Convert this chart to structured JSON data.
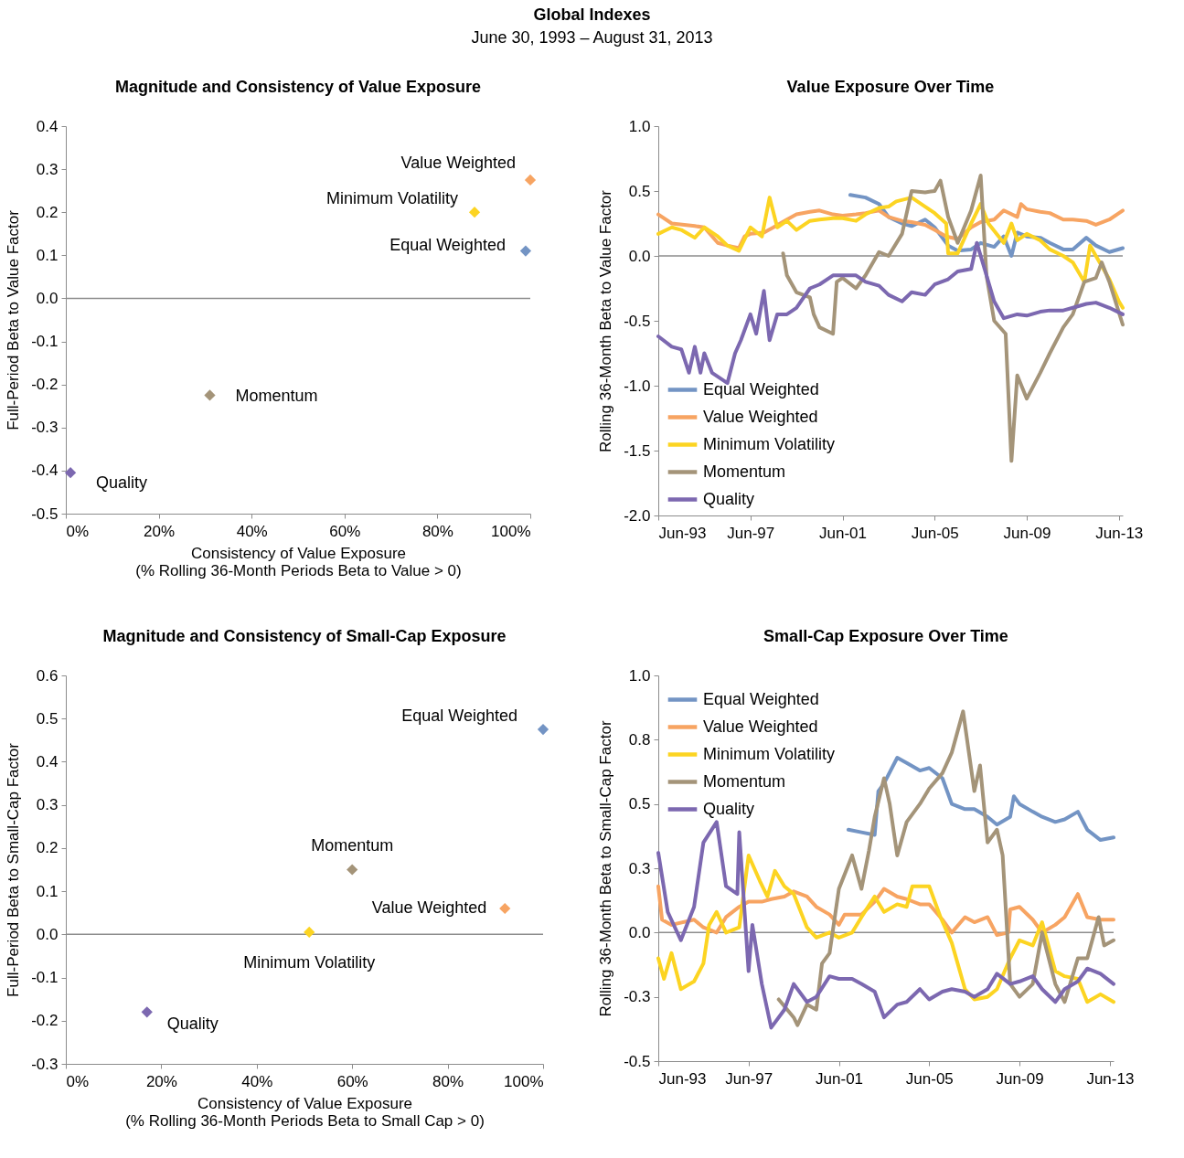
{
  "chart_data": [
    {
      "type": "other",
      "title": "Global Indexes",
      "subtitle": "June 30, 1993 – August 31, 2013"
    },
    {
      "type": "scatter",
      "title": "Magnitude and Consistency of Value Exposure",
      "xlabel": "Consistency of Value Exposure\n(% Rolling 36-Month Periods Beta to Value > 0)",
      "ylabel": "Full-Period Beta to Value Factor",
      "xlim": [
        0,
        100
      ],
      "xticks": [
        {
          "value": 0,
          "label": "0%"
        },
        {
          "value": 20,
          "label": "20%"
        },
        {
          "value": 40,
          "label": "40%"
        },
        {
          "value": 60,
          "label": "60%"
        },
        {
          "value": 80,
          "label": "80%"
        },
        {
          "value": 100,
          "label": "100%"
        }
      ],
      "ylim": [
        -0.5,
        0.4
      ],
      "yticks": [
        0.4,
        0.3,
        0.2,
        0.1,
        {
          "value": 0,
          "label": "0.0"
        },
        -0.1,
        -0.2,
        -0.3,
        -0.4,
        -0.5
      ],
      "marker": "diamond",
      "legend": false,
      "grid": false,
      "ref_lines": [
        {
          "axis": "y",
          "value": 0,
          "color": "#8c8c8c"
        }
      ],
      "series": [
        {
          "name": "Equal Weighted",
          "color": "#7394c4",
          "x": [
            99
          ],
          "values": [
            0.11
          ]
        },
        {
          "name": "Value Weighted",
          "color": "#f7a462",
          "x": [
            100
          ],
          "values": [
            0.275
          ]
        },
        {
          "name": "Minimum Volatility",
          "color": "#fcd422",
          "x": [
            88
          ],
          "values": [
            0.2
          ]
        },
        {
          "name": "Momentum",
          "color": "#a49479",
          "x": [
            31
          ],
          "values": [
            -0.225
          ]
        },
        {
          "name": "Quality",
          "color": "#7c68b0",
          "x": [
            1
          ],
          "values": [
            -0.405
          ]
        }
      ]
    },
    {
      "type": "line",
      "title": "Value Exposure Over Time",
      "ylabel": "Rolling 36-Month Beta to Value Factor",
      "xlim": [
        "1993-06",
        "2013-08"
      ],
      "xticks": [
        {
          "value": "1993-06",
          "label": "Jun-93"
        },
        {
          "value": "1997-06",
          "label": "Jun-97"
        },
        {
          "value": "2001-06",
          "label": "Jun-01"
        },
        {
          "value": "2005-06",
          "label": "Jun-05"
        },
        {
          "value": "2009-06",
          "label": "Jun-09"
        },
        {
          "value": "2013-06",
          "label": "Jun-13"
        }
      ],
      "ylim": [
        -2,
        1
      ],
      "yticks": [
        {
          "value": 1,
          "label": "1.0"
        },
        0.5,
        {
          "value": 0,
          "label": "0.0"
        },
        -0.5,
        {
          "value": -1,
          "label": "-1.0"
        },
        -1.5,
        {
          "value": -2,
          "label": "-2.0"
        }
      ],
      "legend": "bottom left",
      "grid": false,
      "marker": "none",
      "line_style": "solid",
      "ref_lines": [
        {
          "axis": "y",
          "value": 0,
          "color": "#8c8c8c"
        }
      ],
      "series": [
        {
          "name": "Equal Weighted",
          "color": "#7394c4",
          "x": [
            "2001-10",
            "2002-06",
            "2003-01",
            "2003-06",
            "2004-01",
            "2004-06",
            "2005-01",
            "2005-06",
            "2006-01",
            "2006-06",
            "2007-01",
            "2007-06",
            "2008-01",
            "2008-06",
            "2008-10",
            "2009-01",
            "2009-06",
            "2010-01",
            "2010-06",
            "2011-01",
            "2011-06",
            "2012-01",
            "2012-06",
            "2013-01",
            "2013-08"
          ],
          "values": [
            0.47,
            0.45,
            0.4,
            0.3,
            0.25,
            0.23,
            0.28,
            0.22,
            0.08,
            0.04,
            0.05,
            0.1,
            0.07,
            0.15,
            0,
            0.18,
            0.15,
            0.14,
            0.1,
            0.05,
            0.05,
            0.14,
            0.08,
            0.03,
            0.06
          ]
        },
        {
          "name": "Value Weighted",
          "color": "#f7a462",
          "x": [
            "1993-06",
            "1994-01",
            "1995-01",
            "1995-06",
            "1996-01",
            "1996-06",
            "1996-12",
            "1997-03",
            "1997-06",
            "1998-01",
            "1998-06",
            "1999-01",
            "1999-06",
            "2000-01",
            "2000-06",
            "2001-01",
            "2001-06",
            "2002-01",
            "2002-06",
            "2003-01",
            "2003-06",
            "2004-01",
            "2004-06",
            "2005-01",
            "2005-06",
            "2005-12",
            "2006-06",
            "2007-01",
            "2007-06",
            "2008-01",
            "2008-06",
            "2009-01",
            "2009-03",
            "2009-06",
            "2010-01",
            "2010-06",
            "2011-01",
            "2011-06",
            "2012-01",
            "2012-06",
            "2013-01",
            "2013-08"
          ],
          "values": [
            0.32,
            0.25,
            0.23,
            0.22,
            0.1,
            0.08,
            0.06,
            0.15,
            0.17,
            0.18,
            0.22,
            0.28,
            0.32,
            0.34,
            0.35,
            0.32,
            0.31,
            0.32,
            0.33,
            0.35,
            0.3,
            0.27,
            0.26,
            0.24,
            0.2,
            0.15,
            0.13,
            0.22,
            0.26,
            0.28,
            0.35,
            0.3,
            0.4,
            0.36,
            0.34,
            0.33,
            0.28,
            0.28,
            0.27,
            0.24,
            0.28,
            0.35
          ]
        },
        {
          "name": "Minimum Volatility",
          "color": "#fcd422",
          "x": [
            "1993-06",
            "1994-01",
            "1994-06",
            "1995-01",
            "1995-06",
            "1996-01",
            "1996-06",
            "1996-12",
            "1997-06",
            "1997-12",
            "1998-04",
            "1998-08",
            "1999-01",
            "1999-06",
            "2000-01",
            "2000-06",
            "2001-01",
            "2001-06",
            "2002-01",
            "2002-06",
            "2003-01",
            "2003-06",
            "2003-10",
            "2004-06",
            "2005-01",
            "2005-06",
            "2005-12",
            "2006-01",
            "2006-06",
            "2007-01",
            "2007-06",
            "2007-10",
            "2008-06",
            "2008-10",
            "2009-01",
            "2009-06",
            "2010-01",
            "2010-06",
            "2011-01",
            "2011-06",
            "2011-12",
            "2012-03",
            "2012-06",
            "2013-01",
            "2013-06",
            "2013-08"
          ],
          "values": [
            0.17,
            0.22,
            0.2,
            0.14,
            0.22,
            0.15,
            0.08,
            0.04,
            0.22,
            0.15,
            0.45,
            0.22,
            0.27,
            0.2,
            0.27,
            0.28,
            0.29,
            0.29,
            0.27,
            0.32,
            0.37,
            0.38,
            0.42,
            0.45,
            0.38,
            0.33,
            0.25,
            0.02,
            0.02,
            0.25,
            0.4,
            0.25,
            0.1,
            0.25,
            0.12,
            0.17,
            0.12,
            0.05,
            0,
            -0.05,
            -0.2,
            0.08,
            0,
            -0.18,
            -0.35,
            -0.4
          ]
        },
        {
          "name": "Momentum",
          "color": "#a49479",
          "x": [
            "1998-11",
            "1999-01",
            "1999-06",
            "2000-01",
            "2000-03",
            "2000-06",
            "2001-01",
            "2001-03",
            "2001-06",
            "2002-01",
            "2002-06",
            "2003-01",
            "2003-06",
            "2004-01",
            "2004-06",
            "2005-01",
            "2005-06",
            "2005-09",
            "2006-01",
            "2006-06",
            "2007-01",
            "2007-06",
            "2007-09",
            "2008-01",
            "2008-07",
            "2008-10",
            "2009-01",
            "2009-06",
            "2010-01",
            "2010-06",
            "2011-01",
            "2011-06",
            "2011-12",
            "2012-06",
            "2012-09",
            "2013-01",
            "2013-08"
          ],
          "values": [
            0.02,
            -0.15,
            -0.28,
            -0.32,
            -0.45,
            -0.55,
            -0.6,
            -0.2,
            -0.17,
            -0.25,
            -0.15,
            0.03,
            0,
            0.17,
            0.5,
            0.49,
            0.5,
            0.58,
            0.3,
            0.1,
            0.35,
            0.62,
            -0.15,
            -0.5,
            -0.6,
            -1.58,
            -0.92,
            -1.1,
            -0.9,
            -0.75,
            -0.55,
            -0.45,
            -0.2,
            -0.17,
            -0.05,
            -0.2,
            -0.53
          ]
        },
        {
          "name": "Quality",
          "color": "#7c68b0",
          "x": [
            "1993-06",
            "1994-01",
            "1994-06",
            "1994-10",
            "1995-01",
            "1995-04",
            "1995-06",
            "1995-10",
            "1996-06",
            "1996-10",
            "1997-01",
            "1997-06",
            "1997-09",
            "1998-01",
            "1998-04",
            "1998-08",
            "1999-01",
            "1999-06",
            "2000-01",
            "2000-06",
            "2001-01",
            "2001-06",
            "2002-01",
            "2002-06",
            "2003-01",
            "2003-06",
            "2004-01",
            "2004-06",
            "2005-01",
            "2005-06",
            "2006-01",
            "2006-06",
            "2007-01",
            "2007-04",
            "2007-09",
            "2008-01",
            "2008-06",
            "2009-01",
            "2009-06",
            "2010-01",
            "2010-06",
            "2011-01",
            "2011-06",
            "2012-01",
            "2012-06",
            "2013-01",
            "2013-08"
          ],
          "values": [
            -0.62,
            -0.7,
            -0.72,
            -0.9,
            -0.7,
            -0.9,
            -0.75,
            -0.9,
            -0.98,
            -0.75,
            -0.65,
            -0.45,
            -0.6,
            -0.27,
            -0.65,
            -0.45,
            -0.45,
            -0.4,
            -0.25,
            -0.22,
            -0.15,
            -0.15,
            -0.15,
            -0.2,
            -0.23,
            -0.3,
            -0.35,
            -0.28,
            -0.3,
            -0.22,
            -0.18,
            -0.12,
            -0.1,
            0.1,
            -0.15,
            -0.35,
            -0.48,
            -0.45,
            -0.46,
            -0.43,
            -0.42,
            -0.42,
            -0.4,
            -0.37,
            -0.36,
            -0.4,
            -0.45
          ]
        }
      ]
    },
    {
      "type": "scatter",
      "title": "Magnitude and Consistency of Small-Cap Exposure",
      "xlabel": "Consistency of Value Exposure\n(% Rolling 36-Month Periods Beta to Small Cap > 0)",
      "ylabel": "Full-Period Beta to Small-Cap Factor",
      "xlim": [
        0,
        100
      ],
      "xticks": [
        {
          "value": 0,
          "label": "0%"
        },
        {
          "value": 20,
          "label": "20%"
        },
        {
          "value": 40,
          "label": "40%"
        },
        {
          "value": 60,
          "label": "60%"
        },
        {
          "value": 80,
          "label": "80%"
        },
        {
          "value": 100,
          "label": "100%"
        }
      ],
      "ylim": [
        -0.3,
        0.6
      ],
      "yticks": [
        0.6,
        0.5,
        0.4,
        0.3,
        0.2,
        0.1,
        {
          "value": 0,
          "label": "0.0"
        },
        -0.1,
        -0.2,
        -0.3
      ],
      "marker": "diamond",
      "legend": false,
      "grid": false,
      "ref_lines": [
        {
          "axis": "y",
          "value": 0,
          "color": "#8c8c8c"
        }
      ],
      "series": [
        {
          "name": "Equal Weighted",
          "color": "#7394c4",
          "x": [
            100
          ],
          "values": [
            0.475
          ]
        },
        {
          "name": "Value Weighted",
          "color": "#f7a462",
          "x": [
            92
          ],
          "values": [
            0.06
          ]
        },
        {
          "name": "Minimum Volatility",
          "color": "#fcd422",
          "x": [
            51
          ],
          "values": [
            0.005
          ]
        },
        {
          "name": "Momentum",
          "color": "#a49479",
          "x": [
            60
          ],
          "values": [
            0.15
          ]
        },
        {
          "name": "Quality",
          "color": "#7c68b0",
          "x": [
            17
          ],
          "values": [
            -0.18
          ]
        }
      ]
    },
    {
      "type": "line",
      "title": "Small-Cap Exposure Over Time",
      "ylabel": "Rolling 36-Month Beta to Small-Cap Factor",
      "xlim": [
        "1993-06",
        "2013-08"
      ],
      "xticks": [
        {
          "value": "1993-06",
          "label": "Jun-93"
        },
        {
          "value": "1997-06",
          "label": "Jun-97"
        },
        {
          "value": "2001-06",
          "label": "Jun-01"
        },
        {
          "value": "2005-06",
          "label": "Jun-05"
        },
        {
          "value": "2009-06",
          "label": "Jun-09"
        },
        {
          "value": "2013-06",
          "label": "Jun-13"
        }
      ],
      "ylim": [
        -0.5,
        1
      ],
      "yticks": [
        {
          "value": 1,
          "label": "1.0"
        },
        {
          "value": 0.75,
          "label": "0.8"
        },
        0.5,
        {
          "value": 0.25,
          "label": "0.3"
        },
        {
          "value": 0,
          "label": "0.0"
        },
        {
          "value": -0.25,
          "label": "-0.3"
        },
        -0.5
      ],
      "legend": "top left",
      "grid": false,
      "marker": "none",
      "line_style": "solid",
      "ref_lines": [
        {
          "axis": "y",
          "value": 0,
          "color": "#8c8c8c"
        }
      ],
      "series": [
        {
          "name": "Equal Weighted",
          "color": "#7394c4",
          "x": [
            "2001-11",
            "2002-06",
            "2003-01",
            "2003-03",
            "2003-06",
            "2004-01",
            "2004-06",
            "2005-01",
            "2005-06",
            "2006-01",
            "2006-06",
            "2007-01",
            "2007-06",
            "2008-01",
            "2008-06",
            "2009-01",
            "2009-03",
            "2009-06",
            "2010-01",
            "2010-06",
            "2011-01",
            "2011-06",
            "2012-01",
            "2012-06",
            "2013-01",
            "2013-08"
          ],
          "values": [
            0.4,
            0.39,
            0.38,
            0.55,
            0.58,
            0.68,
            0.66,
            0.63,
            0.64,
            0.6,
            0.5,
            0.48,
            0.48,
            0.45,
            0.42,
            0.45,
            0.53,
            0.5,
            0.47,
            0.45,
            0.43,
            0.44,
            0.47,
            0.4,
            0.36,
            0.37
          ]
        },
        {
          "name": "Value Weighted",
          "color": "#f7a462",
          "x": [
            "1993-06",
            "1993-08",
            "1994-01",
            "1995-01",
            "1995-06",
            "1996-01",
            "1996-06",
            "1997-01",
            "1997-06",
            "1998-01",
            "1998-06",
            "1999-01",
            "1999-06",
            "2000-01",
            "2000-06",
            "2001-01",
            "2001-06",
            "2001-09",
            "2002-06",
            "2003-01",
            "2003-06",
            "2004-01",
            "2004-06",
            "2005-01",
            "2005-06",
            "2006-01",
            "2006-06",
            "2007-01",
            "2007-06",
            "2008-01",
            "2008-06",
            "2008-12",
            "2009-01",
            "2009-06",
            "2010-01",
            "2010-06",
            "2011-01",
            "2011-06",
            "2012-01",
            "2012-06",
            "2013-01",
            "2013-08"
          ],
          "values": [
            0.18,
            0.05,
            0.03,
            0.05,
            0.02,
            0,
            0.06,
            0.1,
            0.12,
            0.12,
            0.13,
            0.14,
            0.16,
            0.14,
            0.1,
            0.07,
            0.03,
            0.07,
            0.07,
            0.12,
            0.17,
            0.14,
            0.13,
            0.11,
            0.11,
            0.05,
            0,
            0.06,
            0.04,
            0.06,
            -0.01,
            0,
            0.09,
            0.1,
            0.05,
            0,
            0.03,
            0.06,
            0.15,
            0.06,
            0.05,
            0.05
          ]
        },
        {
          "name": "Minimum Volatility",
          "color": "#fcd422",
          "x": [
            "1993-06",
            "1993-09",
            "1994-01",
            "1994-06",
            "1995-01",
            "1995-06",
            "1995-09",
            "1996-01",
            "1996-06",
            "1997-01",
            "1997-06",
            "1997-12",
            "1998-04",
            "1998-08",
            "1999-01",
            "1999-06",
            "2000-01",
            "2000-06",
            "2001-01",
            "2001-06",
            "2002-01",
            "2002-06",
            "2003-01",
            "2003-06",
            "2004-01",
            "2004-06",
            "2004-09",
            "2005-06",
            "2005-12",
            "2006-06",
            "2007-01",
            "2007-06",
            "2008-01",
            "2008-06",
            "2009-01",
            "2009-06",
            "2010-01",
            "2010-06",
            "2011-01",
            "2011-06",
            "2012-01",
            "2012-06",
            "2013-01",
            "2013-08"
          ],
          "values": [
            -0.1,
            -0.18,
            -0.08,
            -0.22,
            -0.19,
            -0.12,
            0.03,
            0.08,
            0,
            0.02,
            0.3,
            0.2,
            0.14,
            0.24,
            0.18,
            0.15,
            0.02,
            -0.02,
            0,
            -0.02,
            0,
            0.06,
            0.14,
            0.08,
            0.11,
            0.1,
            0.18,
            0.18,
            0.06,
            -0.04,
            -0.22,
            -0.26,
            -0.25,
            -0.22,
            -0.1,
            -0.03,
            -0.05,
            0.04,
            -0.15,
            -0.17,
            -0.18,
            -0.27,
            -0.24,
            -0.27
          ]
        },
        {
          "name": "Momentum",
          "color": "#a49479",
          "x": [
            "1998-10",
            "1999-06",
            "1999-08",
            "2000-01",
            "2000-06",
            "2000-09",
            "2001-01",
            "2001-06",
            "2002-01",
            "2002-06",
            "2002-10",
            "2003-01",
            "2003-06",
            "2003-09",
            "2004-01",
            "2004-06",
            "2005-01",
            "2005-06",
            "2006-01",
            "2006-06",
            "2006-12",
            "2007-06",
            "2007-09",
            "2008-01",
            "2008-06",
            "2008-09",
            "2009-01",
            "2009-06",
            "2010-01",
            "2010-06",
            "2011-01",
            "2011-06",
            "2012-01",
            "2012-06",
            "2012-12",
            "2013-03",
            "2013-08"
          ],
          "values": [
            -0.26,
            -0.33,
            -0.36,
            -0.28,
            -0.3,
            -0.12,
            -0.08,
            0.17,
            0.3,
            0.17,
            0.32,
            0.45,
            0.6,
            0.5,
            0.3,
            0.43,
            0.5,
            0.56,
            0.62,
            0.7,
            0.86,
            0.55,
            0.65,
            0.35,
            0.4,
            0.3,
            -0.2,
            -0.25,
            -0.2,
            0,
            -0.2,
            -0.27,
            -0.1,
            -0.1,
            0.06,
            -0.05,
            -0.03
          ]
        },
        {
          "name": "Quality",
          "color": "#7c68b0",
          "x": [
            "1993-06",
            "1993-11",
            "1994-06",
            "1995-01",
            "1995-06",
            "1996-01",
            "1996-06",
            "1996-12",
            "1997-01",
            "1997-06",
            "1997-08",
            "1998-01",
            "1998-06",
            "1999-01",
            "1999-06",
            "2000-01",
            "2000-06",
            "2001-01",
            "2001-06",
            "2002-01",
            "2002-06",
            "2003-01",
            "2003-06",
            "2004-01",
            "2004-06",
            "2005-01",
            "2005-06",
            "2006-01",
            "2006-06",
            "2007-01",
            "2007-06",
            "2008-01",
            "2008-06",
            "2009-01",
            "2009-06",
            "2010-01",
            "2010-06",
            "2011-01",
            "2011-06",
            "2012-01",
            "2012-06",
            "2013-01",
            "2013-08"
          ],
          "values": [
            0.31,
            0.08,
            -0.03,
            0.1,
            0.35,
            0.43,
            0.18,
            0.15,
            0.39,
            -0.15,
            0.03,
            -0.2,
            -0.37,
            -0.3,
            -0.2,
            -0.27,
            -0.25,
            -0.17,
            -0.18,
            -0.18,
            -0.2,
            -0.23,
            -0.33,
            -0.28,
            -0.27,
            -0.22,
            -0.26,
            -0.23,
            -0.22,
            -0.23,
            -0.25,
            -0.22,
            -0.16,
            -0.2,
            -0.19,
            -0.17,
            -0.22,
            -0.27,
            -0.22,
            -0.19,
            -0.14,
            -0.16,
            -0.2
          ]
        }
      ]
    }
  ]
}
